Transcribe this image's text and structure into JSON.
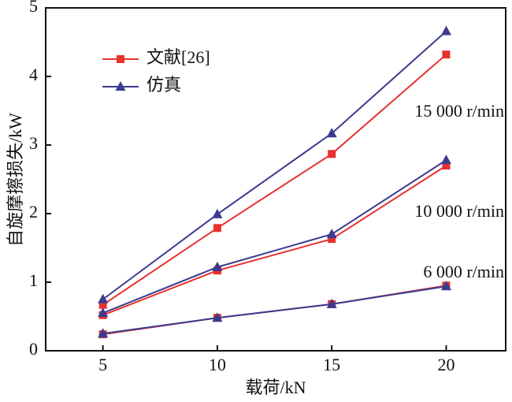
{
  "chart_data": {
    "type": "line",
    "xlabel": "载荷/kN",
    "ylabel": "自旋摩擦损失/kW",
    "x": [
      5,
      10,
      15,
      20
    ],
    "xlim": [
      2.5,
      22.6
    ],
    "xticks": [
      5,
      10,
      15,
      20
    ],
    "ylim": [
      0,
      5
    ],
    "yticks": [
      0,
      1,
      2,
      3,
      4,
      5
    ],
    "group_labels": [
      "6 000 r/min",
      "10 000 r/min",
      "15 000 r/min"
    ],
    "series": [
      {
        "name": "文献[26]",
        "color": "#e8312f",
        "marker": "square",
        "groups": [
          [
            0.24,
            0.48,
            0.68,
            0.95
          ],
          [
            0.52,
            1.17,
            1.63,
            2.7
          ],
          [
            0.67,
            1.79,
            2.87,
            4.32
          ]
        ]
      },
      {
        "name": "仿真",
        "color": "#3b3b8f",
        "marker": "triangle",
        "groups": [
          [
            0.25,
            0.48,
            0.68,
            0.94
          ],
          [
            0.55,
            1.22,
            1.7,
            2.78
          ],
          [
            0.75,
            1.99,
            3.17,
            4.66
          ]
        ]
      }
    ]
  }
}
